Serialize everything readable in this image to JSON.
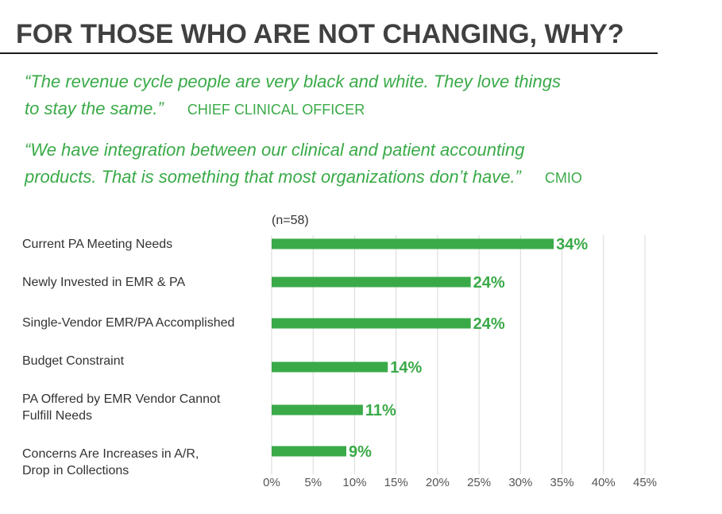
{
  "title": "FOR THOSE WHO ARE NOT CHANGING, WHY?",
  "quotes": [
    {
      "text_line1": "“The revenue cycle people are very black and white. They love things",
      "text_line2": "to stay the same.”",
      "source": "CHIEF CLINICAL OFFICER"
    },
    {
      "text_line1": "“We have integration between our clinical and patient accounting",
      "text_line2": "products. That is something that most organizations don’t have.”",
      "source": "CMIO"
    }
  ],
  "colors": {
    "accent": "#3aaa48",
    "title": "#404040",
    "grid": "#d9d9d9"
  },
  "chart_data": {
    "type": "bar",
    "orientation": "horizontal",
    "note": "(n=58)",
    "categories": [
      [
        "Current PA Meeting Needs"
      ],
      [
        "Newly Invested in EMR & PA"
      ],
      [
        "Single-Vendor EMR/PA Accomplished"
      ],
      [
        "Budget Constraint"
      ],
      [
        "PA Offered by EMR Vendor Cannot",
        "Fulfill Needs"
      ],
      [
        "Concerns Are Increases in A/R,",
        "Drop in Collections"
      ]
    ],
    "values": [
      34,
      24,
      24,
      14,
      11,
      9
    ],
    "value_labels": [
      "34%",
      "24%",
      "24%",
      "14%",
      "11%",
      "9%"
    ],
    "xlim": [
      0,
      45
    ],
    "xticks": [
      "0%",
      "5%",
      "10%",
      "15%",
      "20%",
      "25%",
      "30%",
      "35%",
      "40%",
      "45%"
    ],
    "grid": true,
    "legend": "none",
    "bar_color": "#3aaa48"
  }
}
